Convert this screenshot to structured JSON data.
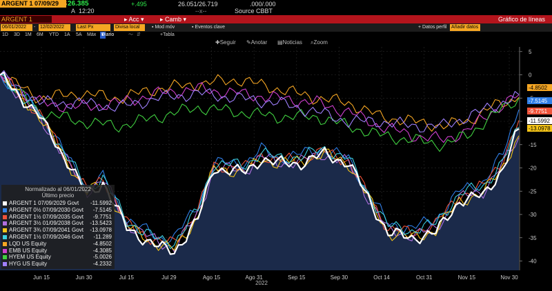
{
  "header": {
    "security": "ARGENT 1 07/09/29",
    "price": "26.385",
    "change": "+.495",
    "bid_ask": "26.051/26.719",
    "volume": ".000/.000",
    "time": "12:20",
    "time_prefix": "A",
    "bid_ask_sep": "--x--",
    "source": "Source CBBT",
    "dollar": "$"
  },
  "redbar": {
    "prompt": "ARGENT 1 07/09/29",
    "actions_label": "Acc",
    "camb_label": "Camb",
    "title": "Gráfico de líneas"
  },
  "toolbar": {
    "start_date": "06/01/2022",
    "end_date": "12/02/2022",
    "field": "Last Px",
    "currency": "Divisa local",
    "mod_mov": "Mod móv",
    "eventos": "Eventos clave",
    "datos_perf": "Datos perfil",
    "anadir": "Añadir datos"
  },
  "ranges": [
    "1D",
    "3D",
    "1M",
    "6M",
    "YTD",
    "1A",
    "5A",
    "Máx"
  ],
  "range_selected": "Diario",
  "range_extra": [
    "Tabla"
  ],
  "tools": [
    "Seguir",
    "Anotar",
    "Noticias",
    "Zoom"
  ],
  "legend": {
    "title": "Normalizado al 06/01/2022",
    "subtitle": "Último precio",
    "items": [
      {
        "name": "ARGENT 1 07/09/2029 Govt",
        "value": "-11.5992",
        "color": "#ffffff"
      },
      {
        "name": "ARGENT 0½ 07/09/2030 Govt",
        "value": "-7.5145",
        "color": "#2f7fe8"
      },
      {
        "name": "ARGENT 1½ 07/09/2035 Govt",
        "value": "-9.7751",
        "color": "#f0533a"
      },
      {
        "name": "ARGENT 3½ 01/09/2038 Govt",
        "value": "-13.5423",
        "color": "#b070e0"
      },
      {
        "name": "ARGENT 3¾ 07/09/2041 Govt",
        "value": "-13.0978",
        "color": "#f5c518"
      },
      {
        "name": "ARGENT 1½ 07/09/2046 Govt",
        "value": "-11.289",
        "color": "#3ccfe0"
      },
      {
        "name": "LQD US Equity",
        "value": "-4.8502",
        "color": "#f5a623"
      },
      {
        "name": "EMB US Equity",
        "value": "-4.3085",
        "color": "#d040d0"
      },
      {
        "name": "HYEM US Equity",
        "value": "-5.0026",
        "color": "#40d040"
      },
      {
        "name": "HYG US Equity",
        "value": "-4.2332",
        "color": "#a080ff"
      }
    ]
  },
  "chart_data": {
    "type": "line",
    "x_labels": [
      "Jun 15",
      "Jun 30",
      "Jul 15",
      "Jul 29",
      "Ago 15",
      "Ago 31",
      "Sep 15",
      "Sep 30",
      "Oct 14",
      "Oct 31",
      "Nov 15",
      "Nov 30"
    ],
    "year_label": "2022",
    "y_ticks": [
      5,
      0,
      -5,
      -10,
      -15,
      -20,
      -25,
      -30,
      -35,
      -40
    ],
    "ylim": [
      -42,
      6
    ],
    "n_points": 132,
    "series": [
      {
        "name": "ARGENT 1 07/09/2029 Govt",
        "color": "#ffffff",
        "area": true,
        "anchors": [
          [
            0,
            0
          ],
          [
            10,
            -9
          ],
          [
            18,
            -20
          ],
          [
            22,
            -26
          ],
          [
            26,
            -23
          ],
          [
            32,
            -33
          ],
          [
            40,
            -37
          ],
          [
            44,
            -38
          ],
          [
            50,
            -31
          ],
          [
            54,
            -20
          ],
          [
            62,
            -21
          ],
          [
            66,
            -18
          ],
          [
            70,
            -19
          ],
          [
            76,
            -19
          ],
          [
            82,
            -17
          ],
          [
            88,
            -19
          ],
          [
            92,
            -25
          ],
          [
            98,
            -34
          ],
          [
            104,
            -35
          ],
          [
            110,
            -34
          ],
          [
            116,
            -27
          ],
          [
            122,
            -26
          ],
          [
            127,
            -20
          ],
          [
            131,
            -11.6
          ]
        ]
      },
      {
        "name": "ARGENT 0½ 07/09/2030 Govt",
        "color": "#2f7fe8",
        "area": false,
        "anchors": [
          [
            0,
            0
          ],
          [
            10,
            -8
          ],
          [
            18,
            -19
          ],
          [
            22,
            -24
          ],
          [
            26,
            -22
          ],
          [
            32,
            -31
          ],
          [
            40,
            -35
          ],
          [
            44,
            -35
          ],
          [
            50,
            -28
          ],
          [
            54,
            -19
          ],
          [
            62,
            -19
          ],
          [
            66,
            -16
          ],
          [
            70,
            -18
          ],
          [
            76,
            -17
          ],
          [
            82,
            -16
          ],
          [
            88,
            -18
          ],
          [
            92,
            -24
          ],
          [
            98,
            -32
          ],
          [
            104,
            -33
          ],
          [
            110,
            -31
          ],
          [
            116,
            -25
          ],
          [
            122,
            -23
          ],
          [
            127,
            -17
          ],
          [
            131,
            -7.5
          ]
        ]
      },
      {
        "name": "ARGENT 1½ 07/09/2035 Govt",
        "color": "#f0533a",
        "area": false,
        "anchors": [
          [
            0,
            0
          ],
          [
            10,
            -8.5
          ],
          [
            18,
            -19.5
          ],
          [
            22,
            -25
          ],
          [
            26,
            -22
          ],
          [
            32,
            -32
          ],
          [
            40,
            -36
          ],
          [
            44,
            -36
          ],
          [
            50,
            -29
          ],
          [
            54,
            -19.5
          ],
          [
            62,
            -20
          ],
          [
            66,
            -17
          ],
          [
            70,
            -18.5
          ],
          [
            76,
            -18
          ],
          [
            82,
            -16.5
          ],
          [
            88,
            -18.5
          ],
          [
            92,
            -24.5
          ],
          [
            98,
            -33
          ],
          [
            104,
            -34
          ],
          [
            110,
            -32
          ],
          [
            116,
            -26
          ],
          [
            122,
            -24
          ],
          [
            127,
            -18
          ],
          [
            131,
            -9.8
          ]
        ]
      },
      {
        "name": "ARGENT 3½ 01/09/2038 Govt",
        "color": "#b070e0",
        "area": false,
        "anchors": [
          [
            0,
            0
          ],
          [
            10,
            -9
          ],
          [
            18,
            -20
          ],
          [
            22,
            -25
          ],
          [
            26,
            -22.5
          ],
          [
            32,
            -32
          ],
          [
            40,
            -36
          ],
          [
            44,
            -37
          ],
          [
            50,
            -30
          ],
          [
            54,
            -20
          ],
          [
            62,
            -20.5
          ],
          [
            66,
            -17.5
          ],
          [
            70,
            -19
          ],
          [
            76,
            -18.5
          ],
          [
            82,
            -17
          ],
          [
            88,
            -19
          ],
          [
            92,
            -25
          ],
          [
            98,
            -33.5
          ],
          [
            104,
            -34.5
          ],
          [
            110,
            -33
          ],
          [
            116,
            -26.5
          ],
          [
            122,
            -25
          ],
          [
            127,
            -19
          ],
          [
            131,
            -13.5
          ]
        ]
      },
      {
        "name": "ARGENT 3¾ 07/09/2041 Govt",
        "color": "#f5c518",
        "area": false,
        "anchors": [
          [
            0,
            0
          ],
          [
            10,
            -9
          ],
          [
            18,
            -20
          ],
          [
            22,
            -25.5
          ],
          [
            26,
            -23
          ],
          [
            32,
            -32.5
          ],
          [
            40,
            -36.5
          ],
          [
            44,
            -37.5
          ],
          [
            50,
            -30.5
          ],
          [
            54,
            -20
          ],
          [
            62,
            -21
          ],
          [
            66,
            -18
          ],
          [
            70,
            -19
          ],
          [
            76,
            -18.5
          ],
          [
            82,
            -17
          ],
          [
            88,
            -19
          ],
          [
            92,
            -25
          ],
          [
            98,
            -34
          ],
          [
            104,
            -35
          ],
          [
            110,
            -33.5
          ],
          [
            116,
            -27
          ],
          [
            122,
            -25.5
          ],
          [
            127,
            -19.5
          ],
          [
            131,
            -13.1
          ]
        ]
      },
      {
        "name": "ARGENT 1½ 07/09/2046 Govt",
        "color": "#3ccfe0",
        "area": false,
        "anchors": [
          [
            0,
            0
          ],
          [
            10,
            -8.5
          ],
          [
            18,
            -19
          ],
          [
            22,
            -24.5
          ],
          [
            26,
            -22
          ],
          [
            32,
            -31.5
          ],
          [
            40,
            -35.5
          ],
          [
            44,
            -36
          ],
          [
            50,
            -29
          ],
          [
            54,
            -19
          ],
          [
            62,
            -19.5
          ],
          [
            66,
            -16.5
          ],
          [
            70,
            -18
          ],
          [
            76,
            -17.5
          ],
          [
            82,
            -16
          ],
          [
            88,
            -18
          ],
          [
            92,
            -24
          ],
          [
            98,
            -32.5
          ],
          [
            104,
            -33.5
          ],
          [
            110,
            -32
          ],
          [
            116,
            -25.5
          ],
          [
            122,
            -24
          ],
          [
            127,
            -18.5
          ],
          [
            131,
            -11.3
          ]
        ]
      },
      {
        "name": "LQD US Equity",
        "color": "#f5a623",
        "area": false,
        "anchors": [
          [
            0,
            0
          ],
          [
            10,
            -5
          ],
          [
            20,
            -4
          ],
          [
            30,
            -5
          ],
          [
            40,
            -3
          ],
          [
            50,
            -2
          ],
          [
            60,
            -1
          ],
          [
            70,
            -3
          ],
          [
            80,
            -5
          ],
          [
            88,
            -6
          ],
          [
            96,
            -9
          ],
          [
            104,
            -10
          ],
          [
            112,
            -11
          ],
          [
            118,
            -10
          ],
          [
            124,
            -7
          ],
          [
            131,
            -4.85
          ]
        ]
      },
      {
        "name": "EMB US Equity",
        "color": "#d040d0",
        "area": false,
        "anchors": [
          [
            0,
            0
          ],
          [
            10,
            -6
          ],
          [
            20,
            -7
          ],
          [
            30,
            -6
          ],
          [
            40,
            -4
          ],
          [
            50,
            -3
          ],
          [
            60,
            -4
          ],
          [
            70,
            -5
          ],
          [
            80,
            -6
          ],
          [
            88,
            -8
          ],
          [
            96,
            -11
          ],
          [
            104,
            -13
          ],
          [
            112,
            -14
          ],
          [
            118,
            -12
          ],
          [
            124,
            -8
          ],
          [
            131,
            -4.3
          ]
        ]
      },
      {
        "name": "HYEM US Equity",
        "color": "#40d040",
        "area": false,
        "anchors": [
          [
            0,
            0
          ],
          [
            10,
            -8
          ],
          [
            20,
            -10
          ],
          [
            30,
            -11
          ],
          [
            40,
            -9
          ],
          [
            50,
            -7
          ],
          [
            60,
            -8
          ],
          [
            70,
            -9
          ],
          [
            80,
            -9
          ],
          [
            88,
            -11
          ],
          [
            96,
            -13
          ],
          [
            104,
            -14
          ],
          [
            112,
            -15
          ],
          [
            118,
            -13
          ],
          [
            124,
            -9
          ],
          [
            131,
            -5.0
          ]
        ]
      },
      {
        "name": "HYG US Equity",
        "color": "#a080ff",
        "area": false,
        "anchors": [
          [
            0,
            0
          ],
          [
            10,
            -6
          ],
          [
            20,
            -6
          ],
          [
            30,
            -7
          ],
          [
            40,
            -5
          ],
          [
            50,
            -4
          ],
          [
            60,
            -5
          ],
          [
            70,
            -6
          ],
          [
            80,
            -8
          ],
          [
            88,
            -10
          ],
          [
            96,
            -10
          ],
          [
            104,
            -11
          ],
          [
            112,
            -11
          ],
          [
            118,
            -9
          ],
          [
            124,
            -7
          ],
          [
            131,
            -4.23
          ]
        ]
      }
    ]
  }
}
